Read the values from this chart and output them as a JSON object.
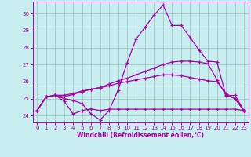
{
  "xlabel": "Windchill (Refroidissement éolien,°C)",
  "xlim": [
    -0.5,
    23.5
  ],
  "ylim": [
    23.6,
    30.7
  ],
  "yticks": [
    24,
    25,
    26,
    27,
    28,
    29,
    30
  ],
  "xticks": [
    0,
    1,
    2,
    3,
    4,
    5,
    6,
    7,
    8,
    9,
    10,
    11,
    12,
    13,
    14,
    15,
    16,
    17,
    18,
    19,
    20,
    21,
    22,
    23
  ],
  "bg_color": "#c8eef0",
  "grid_color": "#9bbfbf",
  "line_color": "#aa00aa",
  "line1_y": [
    24.3,
    25.1,
    25.2,
    25.0,
    24.9,
    24.7,
    24.1,
    23.75,
    24.3,
    25.5,
    27.1,
    28.5,
    29.2,
    29.9,
    30.5,
    29.3,
    29.3,
    28.6,
    27.85,
    27.2,
    27.15,
    25.15,
    25.2,
    24.3
  ],
  "line2_y": [
    24.3,
    25.1,
    25.2,
    25.1,
    25.25,
    25.4,
    25.55,
    25.65,
    25.85,
    26.05,
    26.2,
    26.4,
    26.6,
    26.8,
    27.0,
    27.15,
    27.2,
    27.2,
    27.15,
    27.05,
    26.1,
    25.2,
    25.0,
    24.3
  ],
  "line3_y": [
    24.3,
    25.1,
    25.2,
    25.2,
    25.3,
    25.45,
    25.55,
    25.65,
    25.75,
    25.9,
    26.0,
    26.1,
    26.2,
    26.3,
    26.4,
    26.4,
    26.35,
    26.25,
    26.15,
    26.05,
    26.0,
    25.3,
    25.0,
    24.3
  ],
  "line4_y": [
    24.3,
    25.1,
    25.2,
    24.85,
    24.1,
    24.3,
    24.4,
    24.3,
    24.38,
    24.38,
    24.38,
    24.38,
    24.38,
    24.38,
    24.38,
    24.38,
    24.38,
    24.38,
    24.38,
    24.38,
    24.38,
    24.38,
    24.38,
    24.3
  ]
}
